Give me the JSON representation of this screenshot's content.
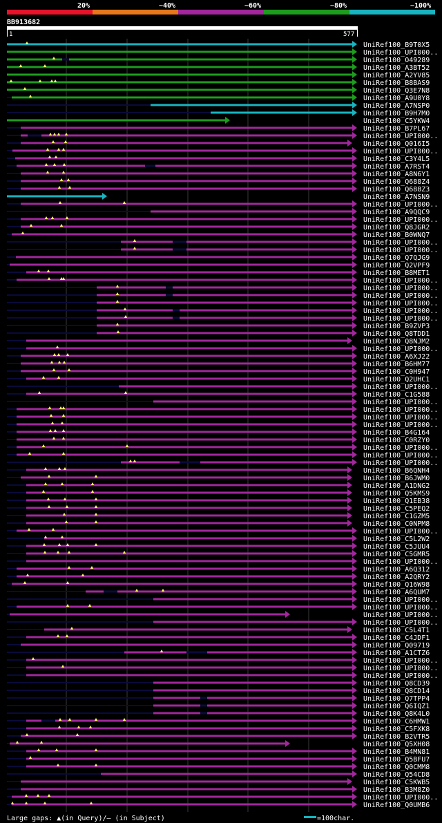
{
  "scale": {
    "labels": [
      "20%",
      "~40%",
      "~60%",
      "~80%",
      "~100%"
    ],
    "segment_colors": [
      "#e8132a",
      "#e8761a",
      "#a2279d",
      "#1d9d1d",
      "#17b5c1"
    ]
  },
  "query": {
    "name": "BB913682",
    "start": "1",
    "end": "577"
  },
  "colors": {
    "cyan": "#17b5c1",
    "green": "#1d9d1d",
    "magenta": "#a2279d",
    "gap": "#0a0a3c",
    "marker": "#ffff66",
    "grid": "#3a3a3a"
  },
  "hits": [
    {
      "name": "UniRef100_B9T0X5",
      "c": "cyan"
    },
    {
      "name": "UniRef100_UPI000..",
      "c": "green"
    },
    {
      "name": "UniRef100_O49289",
      "c": "green"
    },
    {
      "name": "UniRef100_A3BT52",
      "c": "green"
    },
    {
      "name": "UniRef100_A2YV85",
      "c": "green"
    },
    {
      "name": "UniRef100_B8BAS9",
      "c": "green"
    },
    {
      "name": "UniRef100_Q3E7N8",
      "c": "green"
    },
    {
      "name": "UniRef100_A9U0Y8",
      "c": "green"
    },
    {
      "name": "UniRef100_A7NSP0",
      "c": "cyan"
    },
    {
      "name": "UniRef100_B9H7M0",
      "c": "cyan"
    },
    {
      "name": "UniRef100_C5YKW4",
      "c": "green"
    },
    {
      "name": "UniRef100_B7PL67",
      "c": "magenta"
    },
    {
      "name": "UniRef100_UPI000..",
      "c": "magenta"
    },
    {
      "name": "UniRef100_Q016I5",
      "c": "magenta"
    },
    {
      "name": "UniRef100_UPI000..",
      "c": "magenta"
    },
    {
      "name": "UniRef100_C3Y4L5",
      "c": "magenta"
    },
    {
      "name": "UniRef100_A7RST4",
      "c": "magenta"
    },
    {
      "name": "UniRef100_A8N6Y1",
      "c": "magenta"
    },
    {
      "name": "UniRef100_Q688Z4",
      "c": "magenta"
    },
    {
      "name": "UniRef100_Q688Z3",
      "c": "magenta"
    },
    {
      "name": "UniRef100_A7NSN9",
      "c": "cyan"
    },
    {
      "name": "UniRef100_UPI000..",
      "c": "magenta"
    },
    {
      "name": "UniRef100_A9QQC9",
      "c": "magenta"
    },
    {
      "name": "UniRef100_UPI000..",
      "c": "magenta"
    },
    {
      "name": "UniRef100_Q8JGR2",
      "c": "magenta"
    },
    {
      "name": "UniRef100_B0WNQ7",
      "c": "magenta"
    },
    {
      "name": "UniRef100_UPI000..",
      "c": "magenta"
    },
    {
      "name": "UniRef100_UPI000..",
      "c": "magenta"
    },
    {
      "name": "UniRef100_Q7QJG9",
      "c": "magenta"
    },
    {
      "name": "UniRef100_Q2VPF9",
      "c": "magenta"
    },
    {
      "name": "UniRef100_B8MET1",
      "c": "magenta"
    },
    {
      "name": "UniRef100_UPI000..",
      "c": "magenta"
    },
    {
      "name": "UniRef100_UPI000..",
      "c": "magenta"
    },
    {
      "name": "UniRef100_UPI000..",
      "c": "magenta"
    },
    {
      "name": "UniRef100_UPI000..",
      "c": "magenta"
    },
    {
      "name": "UniRef100_UPI000..",
      "c": "magenta"
    },
    {
      "name": "UniRef100_UPI000..",
      "c": "magenta"
    },
    {
      "name": "UniRef100_B9ZVP3",
      "c": "magenta"
    },
    {
      "name": "UniRef100_Q8TDD1",
      "c": "magenta"
    },
    {
      "name": "UniRef100_Q8NJM2",
      "c": "magenta"
    },
    {
      "name": "UniRef100_UPI000..",
      "c": "magenta"
    },
    {
      "name": "UniRef100_A6XJ22",
      "c": "magenta"
    },
    {
      "name": "UniRef100_B6HM77",
      "c": "magenta"
    },
    {
      "name": "UniRef100_C0H947",
      "c": "magenta"
    },
    {
      "name": "UniRef100_Q2UHC1",
      "c": "magenta"
    },
    {
      "name": "UniRef100_UPI000..",
      "c": "magenta"
    },
    {
      "name": "UniRef100_C1G588",
      "c": "magenta"
    },
    {
      "name": "UniRef100_UPI000..",
      "c": "magenta"
    },
    {
      "name": "UniRef100_UPI000..",
      "c": "magenta"
    },
    {
      "name": "UniRef100_UPI000..",
      "c": "magenta"
    },
    {
      "name": "UniRef100_UPI000..",
      "c": "magenta"
    },
    {
      "name": "UniRef100_B4G164",
      "c": "magenta"
    },
    {
      "name": "UniRef100_C0RZY0",
      "c": "magenta"
    },
    {
      "name": "UniRef100_UPI000..",
      "c": "magenta"
    },
    {
      "name": "UniRef100_UPI000..",
      "c": "magenta"
    },
    {
      "name": "UniRef100_UPI000..",
      "c": "magenta"
    },
    {
      "name": "UniRef100_B6QNH4",
      "c": "magenta"
    },
    {
      "name": "UniRef100_B6JWM0",
      "c": "magenta"
    },
    {
      "name": "UniRef100_A1DNG2",
      "c": "magenta"
    },
    {
      "name": "UniRef100_Q5KMS9",
      "c": "magenta"
    },
    {
      "name": "UniRef100_Q1EB38",
      "c": "magenta"
    },
    {
      "name": "UniRef100_C5PEQ2",
      "c": "magenta"
    },
    {
      "name": "UniRef100_C1GZM5",
      "c": "magenta"
    },
    {
      "name": "UniRef100_C0NPM8",
      "c": "magenta"
    },
    {
      "name": "UniRef100_UPI000..",
      "c": "magenta"
    },
    {
      "name": "UniRef100_C5L2W2",
      "c": "magenta"
    },
    {
      "name": "UniRef100_C5JUU4",
      "c": "magenta"
    },
    {
      "name": "UniRef100_C5GMR5",
      "c": "magenta"
    },
    {
      "name": "UniRef100_UPI000..",
      "c": "magenta"
    },
    {
      "name": "UniRef100_A6Q312",
      "c": "magenta"
    },
    {
      "name": "UniRef100_A2QRY2",
      "c": "magenta"
    },
    {
      "name": "UniRef100_Q16W98",
      "c": "magenta"
    },
    {
      "name": "UniRef100_A6QUM7",
      "c": "magenta"
    },
    {
      "name": "UniRef100_UPI000..",
      "c": "magenta"
    },
    {
      "name": "UniRef100_UPI000..",
      "c": "magenta"
    },
    {
      "name": "UniRef100_UPI000..",
      "c": "magenta"
    },
    {
      "name": "UniRef100_UPI000..",
      "c": "magenta"
    },
    {
      "name": "UniRef100_C5L4T1",
      "c": "magenta"
    },
    {
      "name": "UniRef100_C4JDF1",
      "c": "magenta"
    },
    {
      "name": "UniRef100_Q09719",
      "c": "magenta"
    },
    {
      "name": "UniRef100_A1CTZ6",
      "c": "magenta"
    },
    {
      "name": "UniRef100_UPI000..",
      "c": "magenta"
    },
    {
      "name": "UniRef100_UPI000..",
      "c": "magenta"
    },
    {
      "name": "UniRef100_UPI000..",
      "c": "magenta"
    },
    {
      "name": "UniRef100_Q8CD39",
      "c": "magenta"
    },
    {
      "name": "UniRef100_Q8CD14",
      "c": "magenta"
    },
    {
      "name": "UniRef100_Q7TPP4",
      "c": "magenta"
    },
    {
      "name": "UniRef100_Q6IQZ1",
      "c": "magenta"
    },
    {
      "name": "UniRef100_Q8K4L0",
      "c": "magenta"
    },
    {
      "name": "UniRef100_C6HMW1",
      "c": "magenta"
    },
    {
      "name": "UniRef100_C5FXK8",
      "c": "magenta"
    },
    {
      "name": "UniRef100_B2VTR5",
      "c": "magenta"
    },
    {
      "name": "UniRef100_Q5XH08",
      "c": "magenta"
    },
    {
      "name": "UniRef100_B4MN81",
      "c": "magenta"
    },
    {
      "name": "UniRef100_Q5BFU7",
      "c": "magenta"
    },
    {
      "name": "UniRef100_Q0CMM8",
      "c": "magenta"
    },
    {
      "name": "UniRef100_Q54CD8",
      "c": "magenta"
    },
    {
      "name": "UniRef100_C5KWB5",
      "c": "magenta"
    },
    {
      "name": "UniRef100_B3M8Z0",
      "c": "magenta"
    },
    {
      "name": "UniRef100_UPI000..",
      "c": "magenta"
    },
    {
      "name": "UniRef100_Q0UMB6",
      "c": "magenta"
    }
  ],
  "footer": {
    "legend_text": "Large gaps: ▲(in Query)/– (in Subject)",
    "scale_text": "=100char."
  }
}
